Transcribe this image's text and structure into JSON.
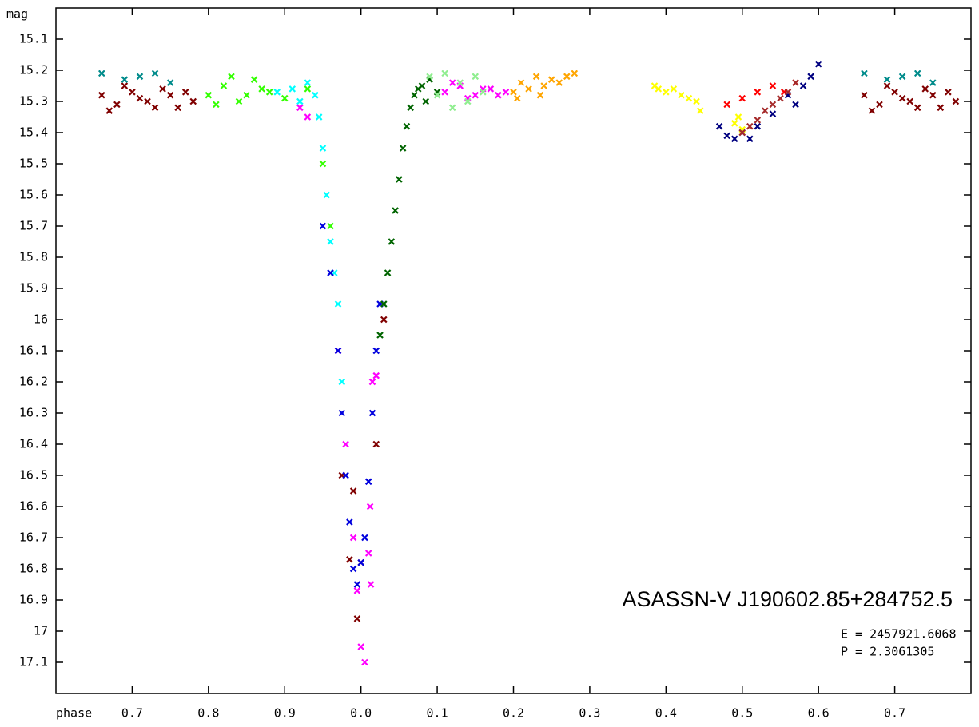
{
  "chart_data": {
    "type": "scatter",
    "ylabel": "mag",
    "xlabel": "phase",
    "annotations": [
      "ASASSN-V J190602.85+284752.5",
      "E = 2457921.6068",
      "P = 2.3061305"
    ],
    "xlim": [
      0.6,
      1.8
    ],
    "ylim": [
      15.0,
      17.2
    ],
    "y_inverted": true,
    "xticks": [
      0.7,
      0.8,
      0.9,
      {
        "value": 1.0,
        "label": "0.0"
      },
      {
        "value": 1.1,
        "label": "0.1"
      },
      {
        "value": 1.2,
        "label": "0.2"
      },
      {
        "value": 1.3,
        "label": "0.3"
      },
      {
        "value": 1.4,
        "label": "0.4"
      },
      {
        "value": 1.5,
        "label": "0.5"
      },
      {
        "value": 1.6,
        "label": "0.6"
      },
      {
        "value": 1.7,
        "label": "0.7"
      }
    ],
    "yticks": [
      15.1,
      15.2,
      15.3,
      15.4,
      15.5,
      15.6,
      15.7,
      15.8,
      15.9,
      16.0,
      16.1,
      16.2,
      16.3,
      16.4,
      16.5,
      16.6,
      16.7,
      16.8,
      16.9,
      17.0,
      17.1
    ],
    "series": [
      {
        "color": "#800000",
        "x": [
          0.66,
          0.68,
          0.7,
          0.72,
          0.74,
          0.76,
          0.78,
          0.67,
          0.69,
          0.71,
          0.73,
          0.75,
          0.77,
          1.66,
          1.68,
          1.7,
          1.72,
          1.74,
          1.76,
          1.78,
          1.67,
          1.69,
          1.71,
          1.73,
          1.75,
          1.77,
          0.975,
          0.985,
          0.995,
          1.0,
          1.02,
          1.03,
          0.99
        ],
        "values": [
          15.28,
          15.31,
          15.27,
          15.3,
          15.26,
          15.32,
          15.3,
          15.33,
          15.25,
          15.29,
          15.32,
          15.28,
          15.27,
          15.28,
          15.31,
          15.27,
          15.3,
          15.26,
          15.32,
          15.3,
          15.33,
          15.25,
          15.29,
          15.32,
          15.28,
          15.27,
          16.5,
          16.77,
          16.96,
          16.78,
          16.4,
          16.0,
          16.55
        ]
      },
      {
        "color": "#008b8b",
        "x": [
          0.66,
          0.69,
          0.71,
          0.73,
          0.75,
          1.66,
          1.69,
          1.71,
          1.73,
          1.75
        ],
        "values": [
          15.21,
          15.23,
          15.22,
          15.21,
          15.24,
          15.21,
          15.23,
          15.22,
          15.21,
          15.24
        ]
      },
      {
        "color": "#33ff00",
        "x": [
          0.8,
          0.82,
          0.84,
          0.86,
          0.88,
          0.9,
          0.81,
          0.83,
          0.85,
          0.87,
          0.93,
          0.95,
          0.96
        ],
        "values": [
          15.28,
          15.25,
          15.3,
          15.23,
          15.27,
          15.29,
          15.31,
          15.22,
          15.28,
          15.26,
          15.26,
          15.5,
          15.7
        ]
      },
      {
        "color": "#00ffff",
        "x": [
          0.89,
          0.91,
          0.92,
          0.93,
          0.94,
          0.945,
          0.95,
          0.955,
          0.96,
          0.965,
          0.97,
          0.975
        ],
        "values": [
          15.27,
          15.26,
          15.3,
          15.24,
          15.28,
          15.35,
          15.45,
          15.6,
          15.75,
          15.85,
          15.95,
          16.2
        ]
      },
      {
        "color": "#ff00ff",
        "x": [
          0.92,
          0.93,
          0.97,
          0.98,
          0.99,
          0.995,
          1.0,
          1.005,
          1.01,
          1.012,
          1.015,
          1.02,
          1.013,
          1.11,
          1.13,
          1.15,
          1.17,
          1.19,
          1.12,
          1.14,
          1.16,
          1.18
        ],
        "values": [
          15.32,
          15.35,
          16.1,
          16.4,
          16.7,
          16.87,
          17.05,
          17.1,
          16.75,
          16.6,
          16.2,
          16.18,
          16.85,
          15.27,
          15.25,
          15.28,
          15.26,
          15.27,
          15.24,
          15.29,
          15.26,
          15.28
        ]
      },
      {
        "color": "#0000dd",
        "x": [
          0.95,
          0.96,
          0.97,
          0.975,
          0.98,
          0.985,
          0.99,
          0.995,
          1.0,
          1.005,
          1.01,
          1.015,
          1.02,
          1.025
        ],
        "values": [
          15.7,
          15.85,
          16.1,
          16.3,
          16.5,
          16.65,
          16.8,
          16.85,
          16.78,
          16.7,
          16.52,
          16.3,
          16.1,
          15.95
        ]
      },
      {
        "color": "#006400",
        "x": [
          1.025,
          1.03,
          1.035,
          1.04,
          1.045,
          1.05,
          1.055,
          1.06,
          1.065,
          1.07,
          1.075,
          1.08,
          1.09,
          1.1,
          1.085
        ],
        "values": [
          16.05,
          15.95,
          15.85,
          15.75,
          15.65,
          15.55,
          15.45,
          15.38,
          15.32,
          15.28,
          15.26,
          15.25,
          15.23,
          15.27,
          15.3
        ]
      },
      {
        "color": "#90ee90",
        "x": [
          1.09,
          1.1,
          1.11,
          1.12,
          1.13,
          1.14,
          1.15,
          1.16
        ],
        "values": [
          15.22,
          15.28,
          15.21,
          15.32,
          15.24,
          15.3,
          15.22,
          15.27
        ]
      },
      {
        "color": "#ffa500",
        "x": [
          1.2,
          1.21,
          1.22,
          1.23,
          1.24,
          1.25,
          1.26,
          1.27,
          1.28,
          1.205,
          1.235
        ],
        "values": [
          15.27,
          15.24,
          15.26,
          15.22,
          15.25,
          15.23,
          15.24,
          15.22,
          15.21,
          15.29,
          15.28
        ]
      },
      {
        "color": "#ffff00",
        "x": [
          1.385,
          1.39,
          1.4,
          1.41,
          1.42,
          1.43,
          1.44,
          1.445,
          1.49,
          1.5,
          1.495
        ],
        "values": [
          15.25,
          15.26,
          15.27,
          15.26,
          15.28,
          15.29,
          15.3,
          15.33,
          15.37,
          15.39,
          15.35
        ]
      },
      {
        "color": "#ff0000",
        "x": [
          1.48,
          1.5,
          1.52,
          1.54,
          1.555,
          1.57
        ],
        "values": [
          15.31,
          15.29,
          15.27,
          15.25,
          15.27,
          15.24
        ]
      },
      {
        "color": "#000080",
        "x": [
          1.47,
          1.48,
          1.49,
          1.5,
          1.51,
          1.52,
          1.54,
          1.56,
          1.58,
          1.59,
          1.6,
          1.57
        ],
        "values": [
          15.38,
          15.41,
          15.42,
          15.4,
          15.42,
          15.38,
          15.34,
          15.28,
          15.25,
          15.22,
          15.18,
          15.31
        ]
      },
      {
        "color": "#a52a2a",
        "x": [
          1.5,
          1.51,
          1.52,
          1.53,
          1.54,
          1.55,
          1.56,
          1.57
        ],
        "values": [
          15.4,
          15.38,
          15.36,
          15.33,
          15.31,
          15.29,
          15.27,
          15.24
        ]
      }
    ]
  }
}
